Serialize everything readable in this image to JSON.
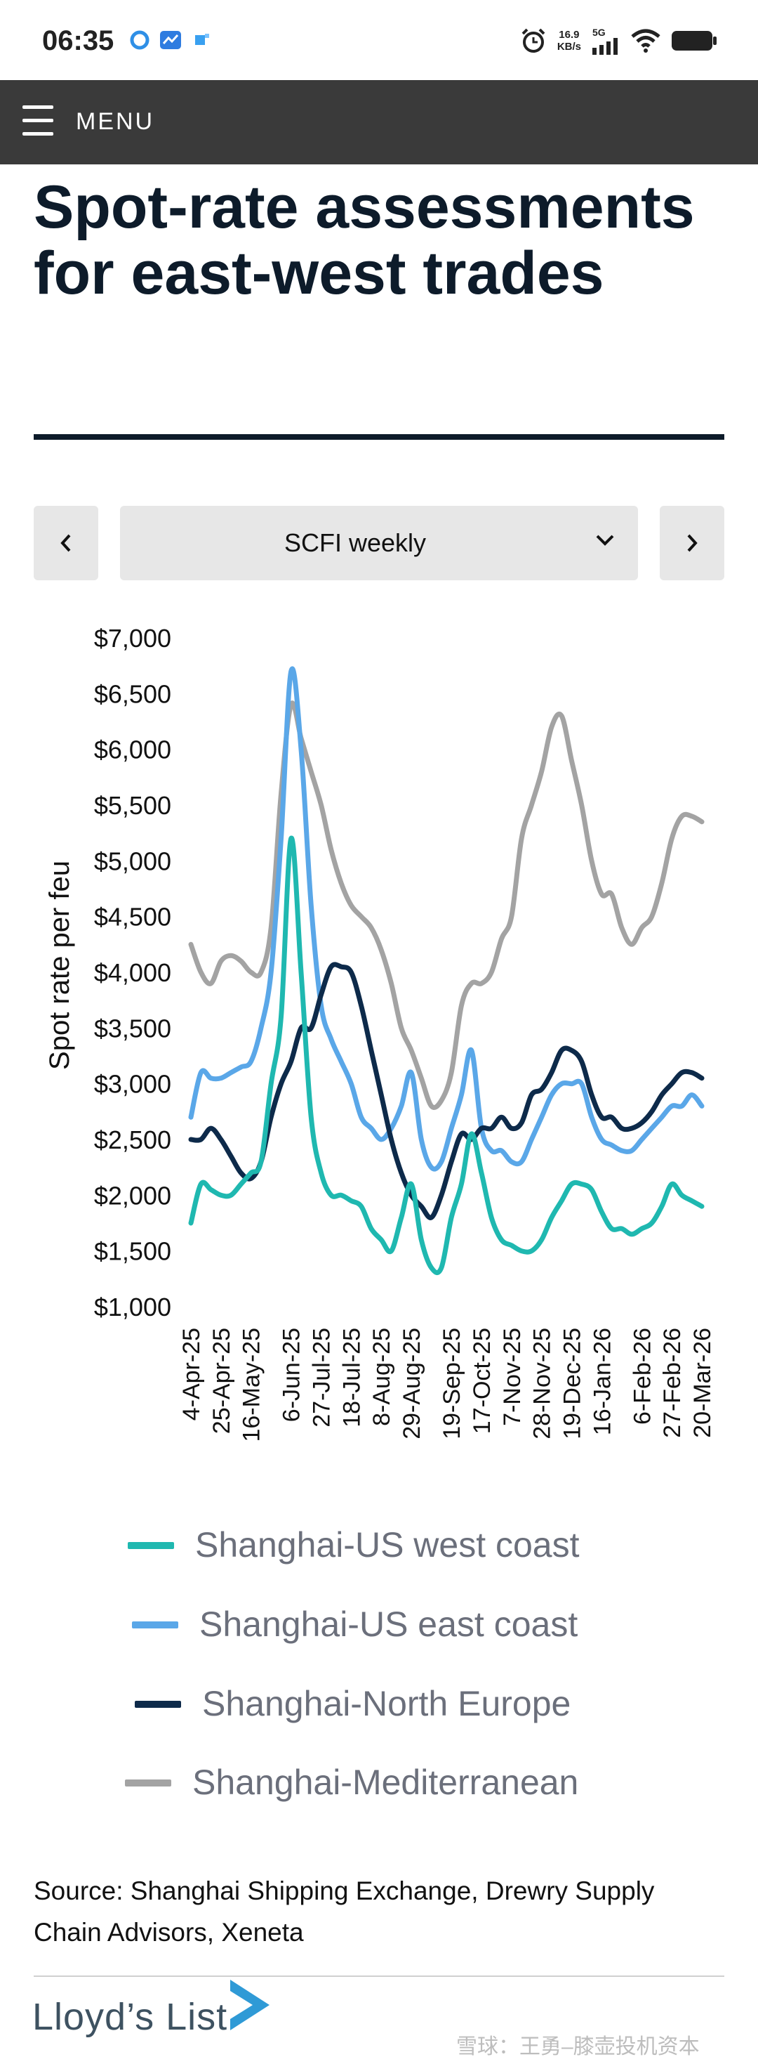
{
  "status_bar": {
    "time": "06:35",
    "net_speed_value": "16.9",
    "net_speed_unit": "KB/s",
    "network": "5G",
    "icons": [
      "app-icon-1",
      "app-icon-2",
      "app-icon-3",
      "alarm-icon",
      "signal-icon",
      "wifi-icon",
      "battery-icon"
    ]
  },
  "navbar": {
    "menu_label": "MENU"
  },
  "page": {
    "title": "Spot-rate assessments for east-west trades"
  },
  "selector": {
    "selected": "SCFI weekly",
    "prev_icon": "chevron-left-icon",
    "next_icon": "chevron-right-icon"
  },
  "colors": {
    "west_coast": "#1fb8b0",
    "east_coast": "#5aa7e8",
    "north_europe": "#0d2a4a",
    "mediterranean": "#a3a3a3"
  },
  "chart_data": {
    "type": "line",
    "title": "Spot-rate assessments for east-west trades",
    "ylabel": "Spot rate per feu",
    "xlabel": "",
    "ylim": [
      1000,
      7000
    ],
    "y_ticks": [
      "$7,000",
      "$6,500",
      "$6,000",
      "$5,500",
      "$5,000",
      "$4,500",
      "$4,000",
      "$3,500",
      "$3,000",
      "$2,500",
      "$2,000",
      "$1,500",
      "$1,000"
    ],
    "x_tick_labels": [
      "4-Apr-25",
      "25-Apr-25",
      "16-May-25",
      "6-Jun-25",
      "27-Jul-25",
      "18-Jul-25",
      "8-Aug-25",
      "29-Aug-25",
      "19-Sep-25",
      "17-Oct-25",
      "7-Nov-25",
      "28-Nov-25",
      "19-Dec-25",
      "16-Jan-26",
      "6-Feb-26",
      "27-Feb-26",
      "20-Mar-26"
    ],
    "weeks": 52,
    "series": [
      {
        "name": "Shanghai-US west coast",
        "key": "west_coast",
        "values": [
          1750,
          2100,
          2050,
          2000,
          2000,
          2100,
          2200,
          2300,
          3000,
          3600,
          5200,
          4000,
          2700,
          2200,
          2000,
          2000,
          1950,
          1900,
          1700,
          1600,
          1500,
          1800,
          2100,
          1600,
          1350,
          1350,
          1800,
          2100,
          2550,
          2200,
          1800,
          1600,
          1550,
          1500,
          1500,
          1600,
          1800,
          1950,
          2100,
          2100,
          2050,
          1850,
          1700,
          1700,
          1650,
          1700,
          1750,
          1900,
          2100,
          2000,
          1950,
          1900
        ]
      },
      {
        "name": "Shanghai-US east coast",
        "key": "east_coast",
        "values": [
          2700,
          3100,
          3050,
          3050,
          3100,
          3150,
          3200,
          3500,
          4000,
          5200,
          6700,
          6000,
          4600,
          3700,
          3400,
          3200,
          3000,
          2700,
          2600,
          2500,
          2600,
          2800,
          3100,
          2500,
          2250,
          2300,
          2600,
          2900,
          3300,
          2600,
          2400,
          2400,
          2300,
          2300,
          2500,
          2700,
          2900,
          3000,
          3000,
          3000,
          2700,
          2500,
          2450,
          2400,
          2400,
          2500,
          2600,
          2700,
          2800,
          2800,
          2900,
          2800
        ]
      },
      {
        "name": "Shanghai-North Europe",
        "key": "north_europe",
        "values": [
          2500,
          2500,
          2600,
          2500,
          2350,
          2200,
          2150,
          2300,
          2700,
          3000,
          3200,
          3500,
          3500,
          3800,
          4050,
          4050,
          4000,
          3700,
          3300,
          2900,
          2500,
          2200,
          2000,
          1900,
          1800,
          2000,
          2300,
          2550,
          2500,
          2600,
          2600,
          2700,
          2600,
          2650,
          2900,
          2950,
          3100,
          3300,
          3300,
          3200,
          2900,
          2700,
          2700,
          2600,
          2600,
          2650,
          2750,
          2900,
          3000,
          3100,
          3100,
          3050
        ]
      },
      {
        "name": "Shanghai-Mediterranean",
        "key": "mediterranean",
        "values": [
          4250,
          4000,
          3900,
          4100,
          4150,
          4100,
          4000,
          4000,
          4400,
          5600,
          6400,
          6100,
          5800,
          5500,
          5100,
          4800,
          4600,
          4500,
          4400,
          4200,
          3900,
          3500,
          3300,
          3050,
          2800,
          2850,
          3100,
          3700,
          3900,
          3900,
          4000,
          4300,
          4500,
          5200,
          5500,
          5800,
          6200,
          6300,
          5900,
          5500,
          5000,
          4700,
          4700,
          4400,
          4250,
          4400,
          4500,
          4800,
          5200,
          5400,
          5400,
          5350
        ]
      }
    ],
    "legend_position": "bottom"
  },
  "legend": [
    {
      "label": "Shanghai-US west coast",
      "color": "#1fb8b0"
    },
    {
      "label": "Shanghai-US east coast",
      "color": "#5aa7e8"
    },
    {
      "label": "Shanghai-North Europe",
      "color": "#0d2a4a"
    },
    {
      "label": "Shanghai-Mediterranean",
      "color": "#a3a3a3"
    }
  ],
  "source_text": "Source: Shanghai Shipping Exchange, Drewry Supply Chain Advisors, Xeneta",
  "footer": {
    "logo_text": "Lloyd’s List",
    "watermark": "雪球：王勇–膝壶投机资本"
  }
}
